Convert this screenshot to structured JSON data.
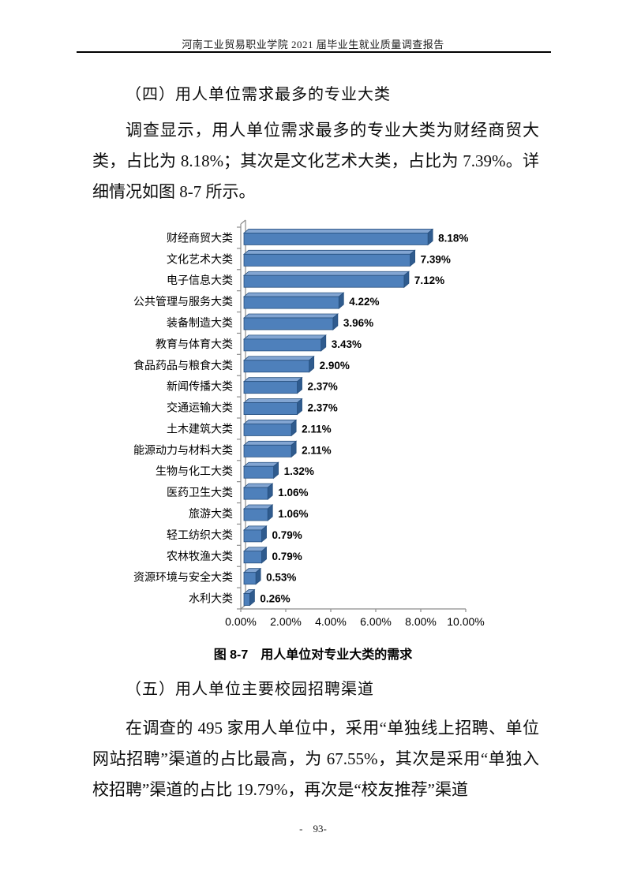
{
  "header": {
    "title": "河南工业贸易职业学院 2021 届毕业生就业质量调查报告"
  },
  "sections": [
    {
      "heading": "（四）用人单位需求最多的专业大类",
      "paragraph": "调查显示，用人单位需求最多的专业大类为财经商贸大类，占比为 8.18%；其次是文化艺术大类，占比为 7.39%。详细情况如图 8-7 所示。"
    },
    {
      "heading": "（五）用人单位主要校园招聘渠道",
      "paragraph": "在调查的 495 家用人单位中，采用“单独线上招聘、单位网站招聘”渠道的占比最高，为 67.55%，其次是采用“单独入校招聘”渠道的占比 19.79%，再次是“校友推荐”渠道"
    }
  ],
  "figure": {
    "caption": "图 8-7　用人单位对专业大类的需求"
  },
  "footer": {
    "page_number": "-　93-"
  },
  "chart_data": {
    "type": "bar",
    "orientation": "horizontal",
    "style": "3d",
    "categories": [
      "财经商贸大类",
      "文化艺术大类",
      "电子信息大类",
      "公共管理与服务大类",
      "装备制造大类",
      "教育与体育大类",
      "食品药品与粮食大类",
      "新闻传播大类",
      "交通运输大类",
      "土木建筑大类",
      "能源动力与材料大类",
      "生物与化工大类",
      "医药卫生大类",
      "旅游大类",
      "轻工纺织大类",
      "农林牧渔大类",
      "资源环境与安全大类",
      "水利大类"
    ],
    "values": [
      8.18,
      7.39,
      7.12,
      4.22,
      3.96,
      3.43,
      2.9,
      2.37,
      2.37,
      2.11,
      2.11,
      1.32,
      1.06,
      1.06,
      0.79,
      0.79,
      0.53,
      0.26
    ],
    "data_labels": [
      "8.18%",
      "7.39%",
      "7.12%",
      "4.22%",
      "3.96%",
      "3.43%",
      "2.90%",
      "2.37%",
      "2.37%",
      "2.11%",
      "2.11%",
      "1.32%",
      "1.06%",
      "1.06%",
      "0.79%",
      "0.79%",
      "0.53%",
      "0.26%"
    ],
    "x_ticks": [
      "0.00%",
      "2.00%",
      "4.00%",
      "6.00%",
      "8.00%",
      "10.00%"
    ],
    "xlim": [
      0,
      10
    ],
    "legend": "none",
    "grid": "off",
    "colors": {
      "bar_face": "#4E80BB",
      "bar_top": "#82A5D2",
      "bar_side": "#2F5B8E",
      "bar_outline": "#27507F",
      "axis": "#8C8C8C",
      "text": "#000000"
    }
  }
}
